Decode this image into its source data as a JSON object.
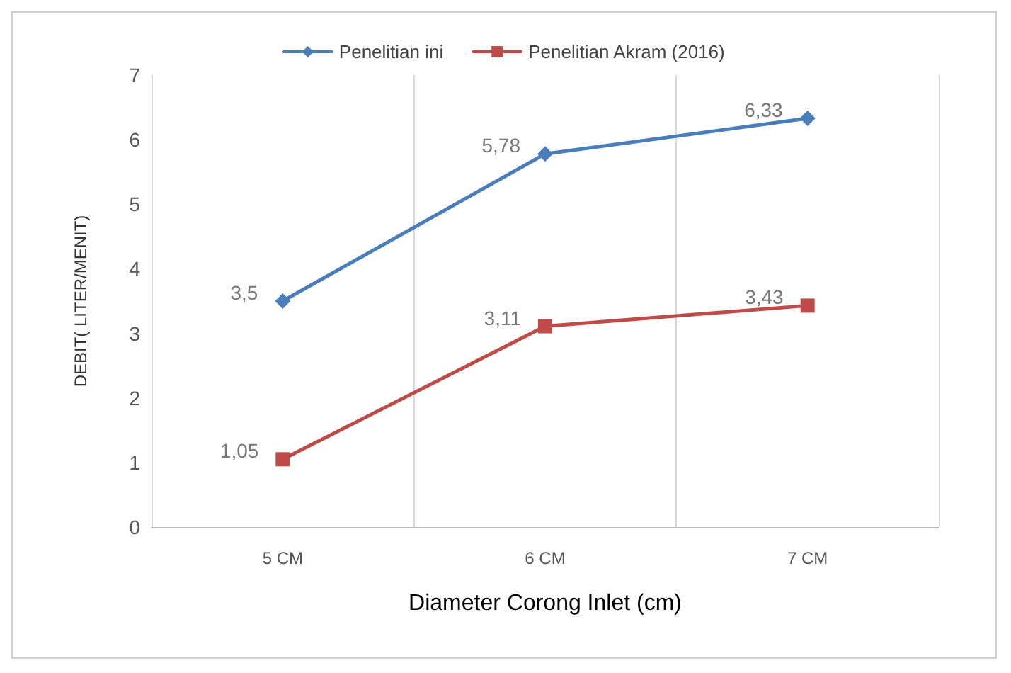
{
  "chart_data": {
    "type": "line",
    "xlabel": "Diameter Corong Inlet (cm)",
    "ylabel": "DEBIT( LITER/MENIT)",
    "categories": [
      "5 CM",
      "6 CM",
      "7 CM"
    ],
    "series": [
      {
        "name": "Penelitian ini",
        "color": "#4a7ebb",
        "marker": "diamond",
        "values": [
          3.5,
          5.78,
          6.33
        ],
        "value_labels": [
          "3,5",
          "5,78",
          "6,33"
        ]
      },
      {
        "name": "Penelitian Akram (2016)",
        "color": "#be4b48",
        "marker": "square",
        "values": [
          1.05,
          3.11,
          3.43
        ],
        "value_labels": [
          "1,05",
          "3,11",
          "3,43"
        ]
      }
    ],
    "ylim": [
      0,
      7
    ],
    "yticks": [
      0,
      1,
      2,
      3,
      4,
      5,
      6,
      7
    ],
    "grid": "x",
    "legend": "top"
  }
}
